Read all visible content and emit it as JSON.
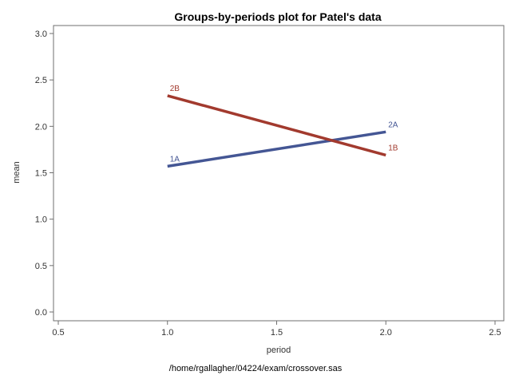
{
  "chart_data": {
    "type": "line",
    "title": "Groups-by-periods plot for Patel's data",
    "xlabel": "period",
    "ylabel": "mean",
    "footnote": "/home/rgallagher/04224/exam/crossover.sas",
    "xlim": [
      0.5,
      2.5
    ],
    "ylim": [
      0.0,
      3.0
    ],
    "x_ticks": [
      "0.5",
      "1.0",
      "1.5",
      "2.0",
      "2.5"
    ],
    "y_ticks": [
      "0.0",
      "0.5",
      "1.0",
      "1.5",
      "2.0",
      "2.5",
      "3.0"
    ],
    "grid": false,
    "legend": "none",
    "series": [
      {
        "color": "#445694",
        "points": [
          {
            "x": 1.0,
            "y": 1.57,
            "label": "1A"
          },
          {
            "x": 2.0,
            "y": 1.94,
            "label": "2A"
          }
        ]
      },
      {
        "color": "#A23A2E",
        "points": [
          {
            "x": 1.0,
            "y": 2.33,
            "label": "2B"
          },
          {
            "x": 2.0,
            "y": 1.69,
            "label": "1B"
          }
        ]
      }
    ]
  }
}
